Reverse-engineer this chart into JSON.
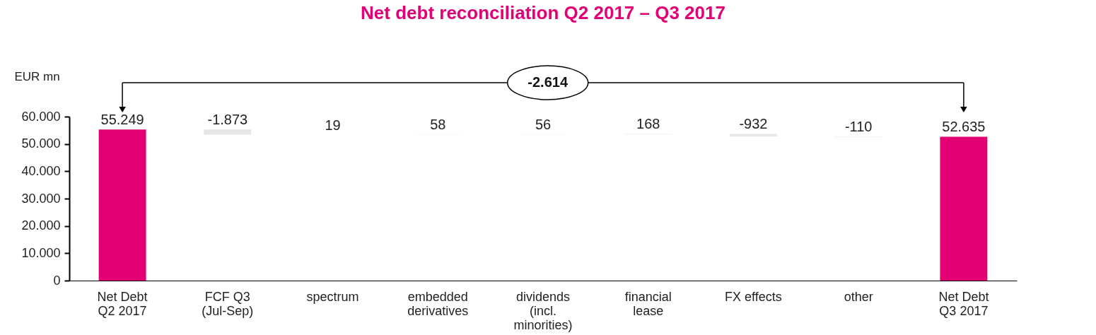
{
  "chart_data": {
    "type": "bar",
    "title": "Net debt reconciliation Q2 2017 – Q3 2017",
    "ylabel": "EUR mn",
    "categories": [
      "Net Debt\nQ2 2017",
      "FCF Q3\n(Jul-Sep)",
      "spectrum",
      "embedded\nderivatives",
      "dividends\n(incl.\nminorities)",
      "financial\nlease",
      "FX effects",
      "other",
      "Net Debt\nQ3 2017"
    ],
    "values": [
      55249,
      -1873,
      19,
      58,
      56,
      168,
      -932,
      -110,
      52635
    ],
    "base": [
      0,
      55249,
      53376,
      53395,
      53453,
      53509,
      53677,
      52745,
      0
    ],
    "colors": [
      "#e20074",
      "#e6e6e6",
      "#e6e6e6",
      "#e6e6e6",
      "#e6e6e6",
      "#e6e6e6",
      "#e6e6e6",
      "#e6e6e6",
      "#e20074"
    ],
    "value_labels": [
      "55.249",
      "-1.873",
      "19",
      "58",
      "56",
      "168",
      "-932",
      "-110",
      "52.635"
    ],
    "ylim": [
      0,
      60000
    ],
    "yticks": [
      0,
      {
        "value": 10000,
        "label": "10.000"
      },
      {
        "value": 20000,
        "label": "20.000"
      },
      {
        "value": 30000,
        "label": "30.000"
      },
      {
        "value": 40000,
        "label": "40.000"
      },
      {
        "value": 50000,
        "label": "50.000"
      },
      {
        "value": 60000,
        "label": "60.000"
      }
    ],
    "annotations": [
      "-2.614"
    ],
    "grid": false,
    "legend": false
  }
}
